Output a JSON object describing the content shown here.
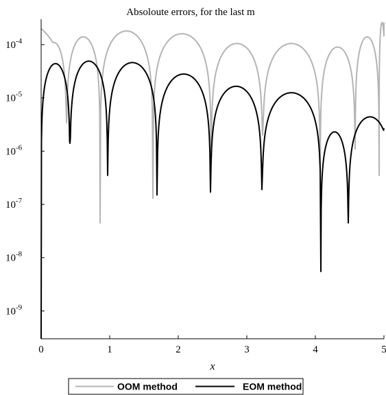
{
  "chart_data": {
    "type": "line",
    "title": "Absoloute errors, for the last m",
    "xlabel": "x",
    "ylabel": "",
    "xlim": [
      0,
      5
    ],
    "ylim": [
      3e-10,
      0.0003
    ],
    "y_scale": "log",
    "grid": false,
    "legend_position": "bottom",
    "x_ticks": [
      "0",
      "1",
      "2",
      "3",
      "4",
      "5"
    ],
    "y_ticks": [
      {
        "base": "10",
        "exp": "-4",
        "value": 0.0001
      },
      {
        "base": "10",
        "exp": "-5",
        "value": 1e-05
      },
      {
        "base": "10",
        "exp": "-6",
        "value": 1e-06
      },
      {
        "base": "10",
        "exp": "-7",
        "value": 1e-07
      },
      {
        "base": "10",
        "exp": "-8",
        "value": 1e-08
      },
      {
        "base": "10",
        "exp": "-9",
        "value": 1e-09
      }
    ],
    "series": [
      {
        "name": "OOM method",
        "color": "#b4b4b4",
        "zeros": [
          0.0,
          0.37,
          0.86,
          1.63,
          2.48,
          3.23,
          4.07,
          4.58,
          4.93
        ],
        "zero_values": [
          0.0002,
          3.4e-06,
          4.5e-08,
          1.3e-07,
          7e-07,
          2e-06,
          5e-07,
          1.1e-06,
          3.5e-07
        ],
        "peaks": [
          0.00011,
          0.00014,
          0.00018,
          0.00016,
          0.000105,
          0.000105,
          9e-05,
          0.00014,
          0.00026
        ]
      },
      {
        "name": "EOM method",
        "color": "#000000",
        "zeros": [
          0.0,
          0.42,
          0.97,
          1.69,
          2.47,
          3.22,
          4.08,
          4.48
        ],
        "zero_values": [
          2e-10,
          1.4e-06,
          3.5e-07,
          1.5e-07,
          1.7e-07,
          1.9e-07,
          5.5e-09,
          4.5e-08
        ],
        "peaks": [
          4.4e-05,
          4.9e-05,
          4.6e-05,
          2.8e-05,
          1.65e-05,
          1.25e-05,
          2.3e-06,
          4.4e-06
        ],
        "end_value": 2.7e-06
      }
    ]
  }
}
